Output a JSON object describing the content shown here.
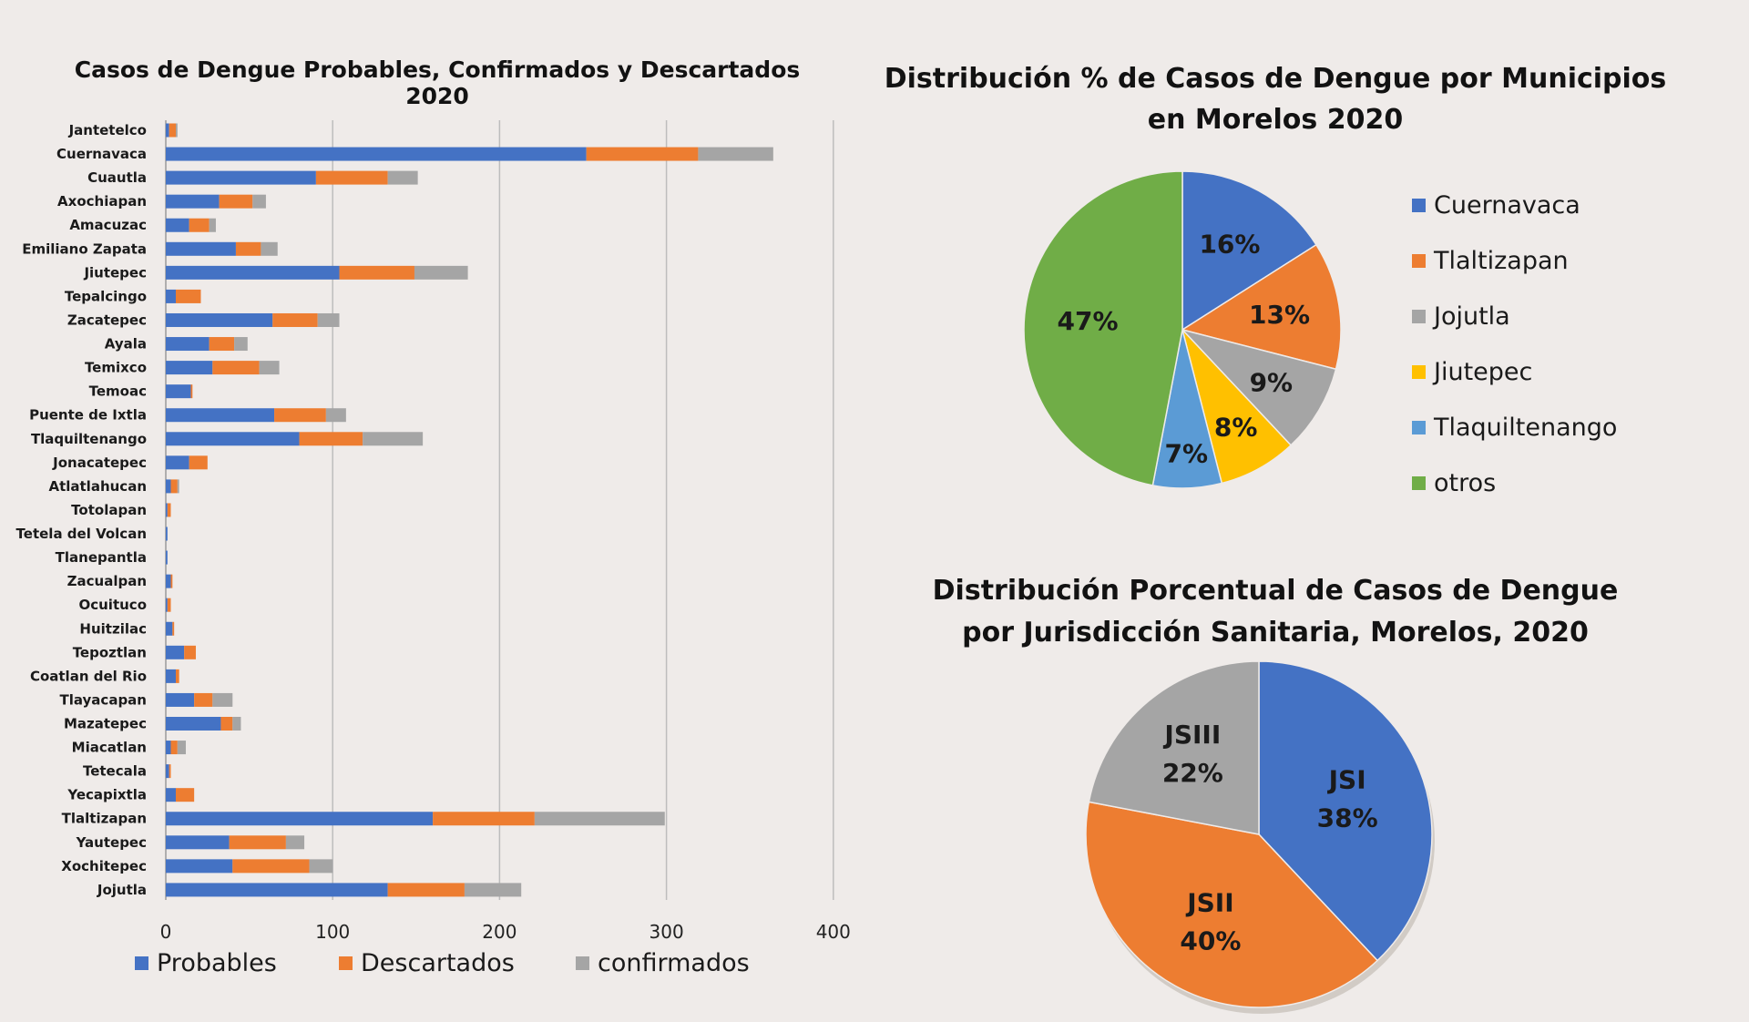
{
  "colors": {
    "blue": "#4472c4",
    "orange": "#ed7d31",
    "gray": "#a5a5a5",
    "gold": "#ffc000",
    "lightblue": "#5b9bd5",
    "green": "#70ad47",
    "background": "#efebe9"
  },
  "chart_data": [
    {
      "type": "bar",
      "orientation": "horizontal",
      "stacked": true,
      "title": "Casos de Dengue Probables, Confirmados y Descartados 2020",
      "categories": [
        "Jantetelco",
        "Cuernavaca",
        "Cuautla",
        "Axochiapan",
        "Amacuzac",
        "Emiliano Zapata",
        "Jiutepec",
        "Tepalcingo",
        "Zacatepec",
        "Ayala",
        "Temixco",
        "Temoac",
        "Puente de Ixtla",
        "Tlaquiltenango",
        "Jonacatepec",
        "Atlatlahucan",
        "Totolapan",
        "Tetela del Volcan",
        "Tlanepantla",
        "Zacualpan",
        "Ocuituco",
        "Huitzilac",
        "Tepoztlan",
        "Coatlan del Rio",
        "Tlayacapan",
        "Mazatepec",
        "Miacatlan",
        "Tetecala",
        "Yecapixtla",
        "Tlaltizapan",
        "Yautepec",
        "Xochitepec",
        "Jojutla"
      ],
      "series": [
        {
          "name": "Probables",
          "color": "#4472c4",
          "values": [
            2,
            252,
            90,
            32,
            14,
            42,
            104,
            6,
            64,
            26,
            28,
            15,
            65,
            80,
            14,
            3,
            1,
            1,
            1,
            3,
            1,
            4,
            11,
            6,
            17,
            33,
            3,
            2,
            6,
            160,
            38,
            40,
            133
          ]
        },
        {
          "name": "Descartados",
          "color": "#ed7d31",
          "values": [
            4,
            67,
            43,
            20,
            12,
            15,
            45,
            15,
            27,
            15,
            28,
            1,
            31,
            38,
            11,
            4,
            2,
            0,
            0,
            1,
            2,
            1,
            7,
            2,
            11,
            7,
            4,
            1,
            11,
            61,
            34,
            46,
            46
          ]
        },
        {
          "name": "confirmados",
          "color": "#a5a5a5",
          "values": [
            1,
            45,
            18,
            8,
            4,
            10,
            32,
            0,
            13,
            8,
            12,
            0,
            12,
            36,
            0,
            1,
            0,
            0,
            0,
            0,
            0,
            0,
            0,
            0,
            12,
            5,
            5,
            0,
            0,
            78,
            11,
            14,
            34
          ]
        }
      ],
      "xticks": [
        "0",
        "100",
        "200",
        "300",
        "400"
      ],
      "xlim": [
        0,
        400
      ],
      "grid": true,
      "legend_position": "bottom"
    },
    {
      "type": "pie",
      "title": "Distribución % de Casos de Dengue por Municipios en Morelos 2020",
      "labels": [
        "Cuernavaca",
        "Tlaltizapan",
        "Jojutla",
        "Jiutepec",
        "Tlaquiltenango",
        "otros"
      ],
      "values": [
        16,
        13,
        9,
        8,
        7,
        47
      ],
      "value_labels": [
        "16%",
        "13%",
        "9%",
        "8%",
        "7%",
        "47%"
      ],
      "colors": [
        "#4472c4",
        "#ed7d31",
        "#a5a5a5",
        "#ffc000",
        "#5b9bd5",
        "#70ad47"
      ],
      "legend_position": "right"
    },
    {
      "type": "pie",
      "title": "Distribución Porcentual de Casos de Dengue por Jurisdicción Sanitaria, Morelos, 2020",
      "labels": [
        "JSI",
        "JSII",
        "JSIII"
      ],
      "values": [
        38,
        40,
        22
      ],
      "value_labels": [
        "38%",
        "40%",
        "22%"
      ],
      "colors": [
        "#4472c4",
        "#ed7d31",
        "#a5a5a5"
      ]
    }
  ]
}
